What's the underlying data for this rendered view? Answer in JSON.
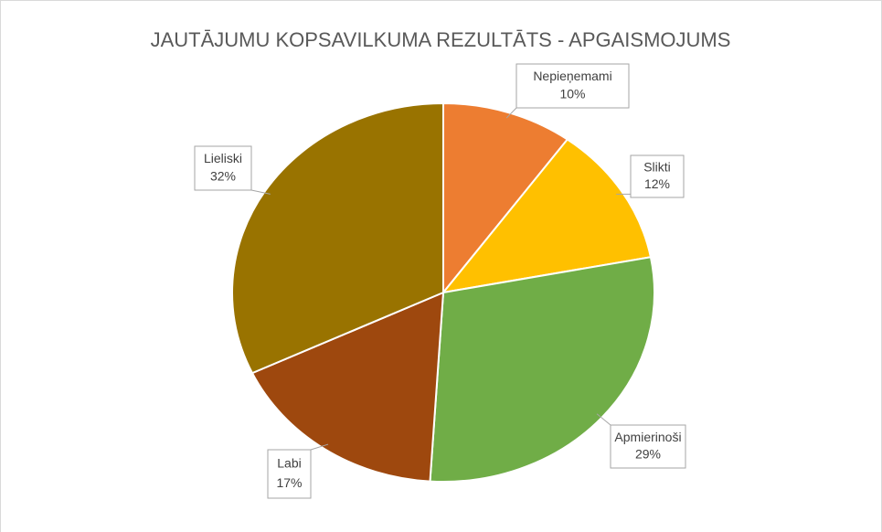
{
  "chart_data": {
    "type": "pie",
    "title": "JAUTĀJUMU KOPSAVILKUMA REZULTĀTS - APGAISMOJUMS",
    "categories": [
      "Nepieņemami",
      "Slikti",
      "Apmierinoši",
      "Labi",
      "Lieliski"
    ],
    "values": [
      10,
      12,
      29,
      17,
      32
    ],
    "value_labels": [
      "10%",
      "12%",
      "29%",
      "17%",
      "32%"
    ],
    "colors": [
      "#ED7D31",
      "#FFC000",
      "#70AD47",
      "#9E480E",
      "#997300"
    ]
  }
}
